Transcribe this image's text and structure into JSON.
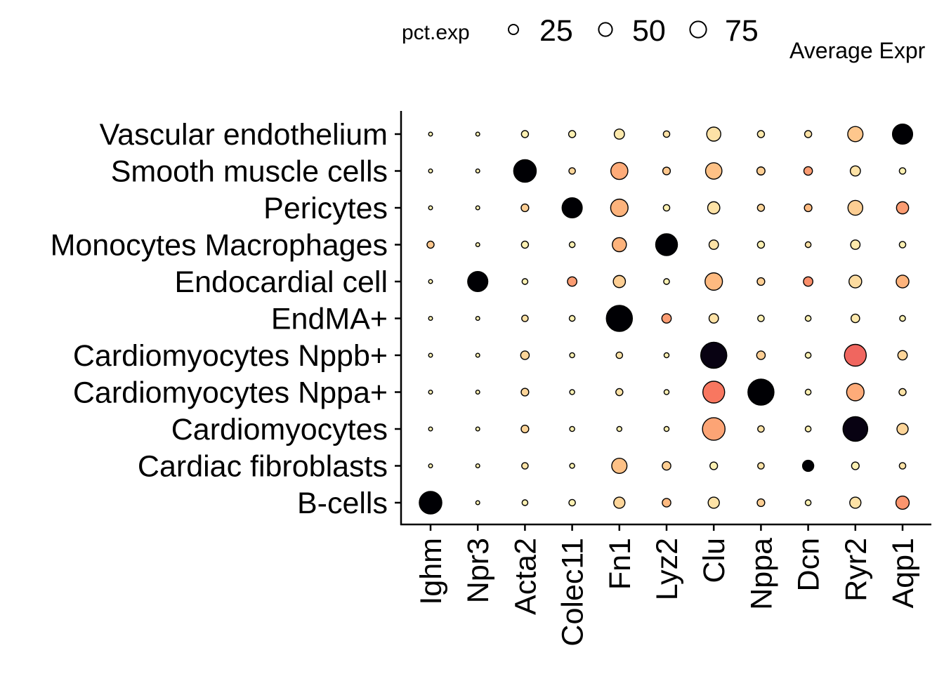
{
  "chart_data": {
    "type": "dotplot",
    "size_legend": {
      "title": "pct.exp",
      "breaks": [
        25,
        50,
        75
      ]
    },
    "color_legend": {
      "title": "Average Expr"
    },
    "genes": [
      "Ighm",
      "Npr3",
      "Acta2",
      "Colec11",
      "Fn1",
      "Lyz2",
      "Clu",
      "Nppa",
      "Dcn",
      "Ryr2",
      "Aqp1"
    ],
    "cell_types": [
      "Vascular endothelium",
      "Smooth muscle cells",
      "Pericytes",
      "Monocytes Macrophages",
      "Endocardial cell",
      "EndMA+",
      "Cardiomyocytes Nppb+",
      "Cardiomyocytes Nppa+",
      "Cardiomyocytes",
      "Cardiac fibroblasts",
      "B-cells"
    ],
    "pct_exp": [
      [
        1,
        1,
        5,
        5,
        12,
        4,
        25,
        5,
        5,
        30,
        55
      ],
      [
        1,
        1,
        70,
        4,
        38,
        6,
        35,
        7,
        8,
        12,
        4
      ],
      [
        1,
        1,
        6,
        55,
        40,
        4,
        18,
        5,
        6,
        28,
        18
      ],
      [
        5,
        1,
        5,
        3,
        25,
        65,
        10,
        5,
        3,
        10,
        4
      ],
      [
        1,
        55,
        3,
        10,
        18,
        3,
        40,
        6,
        10,
        20,
        20
      ],
      [
        1,
        1,
        4,
        3,
        95,
        10,
        10,
        4,
        3,
        8,
        3
      ],
      [
        1,
        1,
        8,
        2,
        4,
        2,
        95,
        8,
        3,
        65,
        10
      ],
      [
        1,
        1,
        6,
        2,
        5,
        2,
        65,
        95,
        3,
        40,
        5
      ],
      [
        1,
        1,
        6,
        2,
        2,
        2,
        70,
        4,
        3,
        85,
        15
      ],
      [
        1,
        1,
        4,
        2,
        30,
        8,
        6,
        4,
        15,
        6,
        4
      ],
      [
        70,
        1,
        3,
        4,
        15,
        8,
        15,
        6,
        3,
        15,
        22
      ]
    ],
    "avg_exp": [
      [
        0.1,
        0.1,
        0.1,
        0.1,
        0.15,
        0.2,
        0.2,
        0.15,
        0.2,
        0.4,
        2.5
      ],
      [
        0.1,
        0.1,
        2.5,
        0.3,
        0.6,
        0.4,
        0.45,
        0.35,
        0.7,
        0.2,
        0.1
      ],
      [
        0.1,
        0.1,
        0.35,
        2.5,
        0.55,
        0.1,
        0.2,
        0.3,
        0.5,
        0.35,
        0.7
      ],
      [
        0.4,
        0.1,
        0.1,
        0.1,
        0.55,
        2.5,
        0.2,
        0.1,
        0.2,
        0.15,
        0.1
      ],
      [
        0.1,
        2.5,
        0.1,
        0.7,
        0.35,
        0.1,
        0.5,
        0.35,
        0.8,
        0.25,
        0.55
      ],
      [
        0.1,
        0.1,
        0.2,
        0.1,
        2.5,
        0.7,
        0.2,
        0.1,
        0.1,
        0.15,
        0.1
      ],
      [
        0.1,
        0.1,
        0.3,
        0.1,
        0.2,
        0.1,
        2.45,
        0.35,
        0.1,
        1.1,
        0.3
      ],
      [
        0.1,
        0.1,
        0.3,
        0.1,
        0.2,
        0.1,
        0.95,
        2.5,
        0.1,
        0.6,
        0.2
      ],
      [
        0.1,
        0.1,
        0.3,
        0.1,
        0.1,
        0.1,
        0.65,
        0.2,
        0.1,
        2.45,
        0.3
      ],
      [
        0.1,
        0.1,
        0.2,
        0.1,
        0.45,
        0.35,
        0.1,
        0.2,
        2.5,
        0.1,
        0.2
      ],
      [
        2.5,
        0.1,
        0.1,
        0.1,
        0.3,
        0.5,
        0.2,
        0.35,
        0.1,
        0.2,
        0.75
      ]
    ],
    "color_scale": "magma-reversed",
    "grid": false
  }
}
